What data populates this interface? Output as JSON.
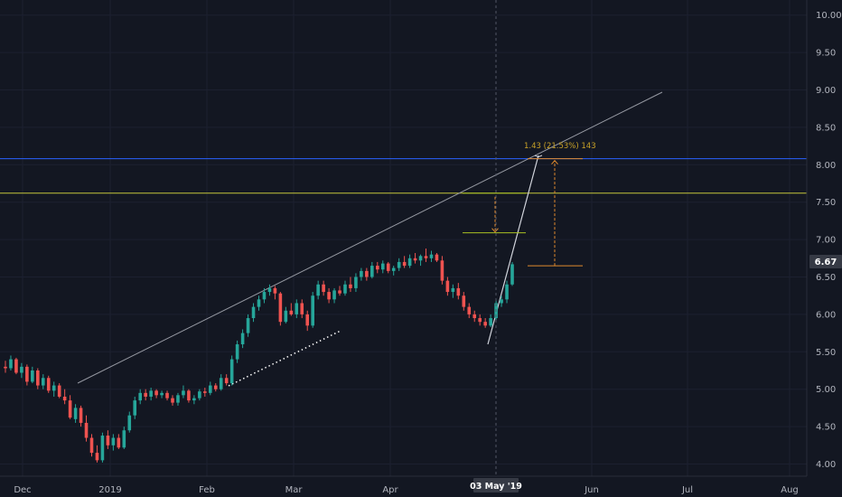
{
  "chart_data": {
    "type": "candlestick",
    "colors": {
      "background": "#131722",
      "up": "#26a69a",
      "down": "#ef5350",
      "axis_text": "#b2b5be",
      "tag_bg": "#363a45",
      "hline_blue": "#2962ff",
      "hline_yellow": "#c5c53a",
      "trendline": "#9598a1",
      "measure_green": "#a8c023",
      "measure_orange": "#e08a2d",
      "ray_white": "#d1d4dc",
      "dotted_white": "#ffffff"
    },
    "price_axis": {
      "min": 3.9,
      "max": 10.0,
      "ticks": [
        "4.00",
        "4.50",
        "5.00",
        "5.50",
        "6.00",
        "6.50",
        "7.00",
        "7.50",
        "8.00",
        "8.50",
        "9.00",
        "9.50",
        "10.00"
      ]
    },
    "time_axis": {
      "labels": [
        "Dec",
        "2019",
        "Feb",
        "Mar",
        "Apr",
        "03 May '19",
        "Jun",
        "Jul",
        "Aug"
      ]
    },
    "last_price": "6.67",
    "crosshair_label": "03 May '19",
    "measurement_label": "1.43 (21.53%) 143",
    "horizontal_lines": [
      {
        "name": "resistance-blue",
        "price": 8.08
      },
      {
        "name": "resistance-yellow",
        "price": 7.62
      }
    ],
    "candles": [
      [
        5.3,
        5.38,
        5.22,
        5.28
      ],
      [
        5.28,
        5.45,
        5.25,
        5.4
      ],
      [
        5.4,
        5.42,
        5.2,
        5.22
      ],
      [
        5.22,
        5.35,
        5.15,
        5.3
      ],
      [
        5.3,
        5.33,
        5.05,
        5.1
      ],
      [
        5.1,
        5.3,
        5.08,
        5.25
      ],
      [
        5.25,
        5.28,
        5.0,
        5.05
      ],
      [
        5.05,
        5.2,
        5.0,
        5.15
      ],
      [
        5.15,
        5.18,
        4.95,
        4.98
      ],
      [
        4.98,
        5.1,
        4.9,
        5.05
      ],
      [
        5.05,
        5.08,
        4.88,
        4.9
      ],
      [
        4.9,
        5.0,
        4.8,
        4.85
      ],
      [
        4.85,
        4.92,
        4.6,
        4.62
      ],
      [
        4.6,
        4.8,
        4.55,
        4.75
      ],
      [
        4.75,
        4.78,
        4.5,
        4.55
      ],
      [
        4.55,
        4.65,
        4.3,
        4.35
      ],
      [
        4.35,
        4.4,
        4.1,
        4.15
      ],
      [
        4.15,
        4.25,
        4.02,
        4.05
      ],
      [
        4.05,
        4.42,
        4.02,
        4.38
      ],
      [
        4.38,
        4.45,
        4.2,
        4.25
      ],
      [
        4.25,
        4.4,
        4.18,
        4.35
      ],
      [
        4.35,
        4.4,
        4.2,
        4.22
      ],
      [
        4.22,
        4.5,
        4.2,
        4.45
      ],
      [
        4.45,
        4.7,
        4.42,
        4.65
      ],
      [
        4.65,
        4.9,
        4.6,
        4.85
      ],
      [
        4.85,
        5.0,
        4.8,
        4.95
      ],
      [
        4.95,
        5.0,
        4.85,
        4.9
      ],
      [
        4.9,
        5.02,
        4.85,
        4.98
      ],
      [
        4.98,
        5.0,
        4.88,
        4.92
      ],
      [
        4.92,
        4.98,
        4.88,
        4.95
      ],
      [
        4.95,
        4.98,
        4.85,
        4.88
      ],
      [
        4.88,
        4.92,
        4.78,
        4.82
      ],
      [
        4.82,
        4.95,
        4.78,
        4.92
      ],
      [
        4.92,
        5.05,
        4.88,
        4.98
      ],
      [
        4.98,
        5.0,
        4.82,
        4.85
      ],
      [
        4.85,
        4.92,
        4.8,
        4.88
      ],
      [
        4.88,
        5.0,
        4.85,
        4.97
      ],
      [
        4.97,
        5.02,
        4.9,
        4.95
      ],
      [
        4.95,
        5.1,
        4.92,
        5.05
      ],
      [
        5.05,
        5.08,
        4.97,
        5.0
      ],
      [
        5.0,
        5.2,
        4.98,
        5.15
      ],
      [
        5.15,
        5.2,
        5.05,
        5.08
      ],
      [
        5.08,
        5.45,
        5.05,
        5.4
      ],
      [
        5.4,
        5.65,
        5.35,
        5.6
      ],
      [
        5.6,
        5.8,
        5.55,
        5.75
      ],
      [
        5.75,
        6.0,
        5.7,
        5.95
      ],
      [
        5.95,
        6.15,
        5.9,
        6.1
      ],
      [
        6.1,
        6.25,
        6.05,
        6.2
      ],
      [
        6.2,
        6.35,
        6.15,
        6.3
      ],
      [
        6.3,
        6.4,
        6.25,
        6.35
      ],
      [
        6.35,
        6.38,
        6.2,
        6.28
      ],
      [
        6.28,
        6.3,
        5.85,
        5.9
      ],
      [
        5.9,
        6.1,
        5.88,
        6.05
      ],
      [
        6.05,
        6.15,
        5.98,
        6.0
      ],
      [
        6.0,
        6.2,
        5.95,
        6.15
      ],
      [
        6.15,
        6.2,
        5.95,
        6.0
      ],
      [
        6.0,
        6.05,
        5.78,
        5.85
      ],
      [
        5.85,
        6.3,
        5.82,
        6.25
      ],
      [
        6.25,
        6.45,
        6.2,
        6.4
      ],
      [
        6.4,
        6.45,
        6.25,
        6.3
      ],
      [
        6.3,
        6.35,
        6.15,
        6.2
      ],
      [
        6.2,
        6.35,
        6.15,
        6.32
      ],
      [
        6.32,
        6.38,
        6.25,
        6.28
      ],
      [
        6.28,
        6.45,
        6.25,
        6.4
      ],
      [
        6.4,
        6.5,
        6.3,
        6.35
      ],
      [
        6.35,
        6.55,
        6.3,
        6.5
      ],
      [
        6.5,
        6.62,
        6.45,
        6.58
      ],
      [
        6.58,
        6.62,
        6.45,
        6.5
      ],
      [
        6.5,
        6.7,
        6.48,
        6.65
      ],
      [
        6.65,
        6.7,
        6.55,
        6.6
      ],
      [
        6.6,
        6.72,
        6.55,
        6.68
      ],
      [
        6.68,
        6.7,
        6.55,
        6.58
      ],
      [
        6.58,
        6.65,
        6.52,
        6.62
      ],
      [
        6.62,
        6.75,
        6.58,
        6.7
      ],
      [
        6.7,
        6.78,
        6.62,
        6.65
      ],
      [
        6.65,
        6.8,
        6.62,
        6.75
      ],
      [
        6.75,
        6.82,
        6.68,
        6.72
      ],
      [
        6.72,
        6.8,
        6.65,
        6.78
      ],
      [
        6.78,
        6.88,
        6.7,
        6.75
      ],
      [
        6.75,
        6.85,
        6.7,
        6.8
      ],
      [
        6.8,
        6.82,
        6.7,
        6.72
      ],
      [
        6.72,
        6.78,
        6.4,
        6.45
      ],
      [
        6.45,
        6.5,
        6.25,
        6.3
      ],
      [
        6.3,
        6.4,
        6.22,
        6.35
      ],
      [
        6.35,
        6.42,
        6.2,
        6.25
      ],
      [
        6.25,
        6.3,
        6.05,
        6.1
      ],
      [
        6.1,
        6.15,
        5.95,
        6.0
      ],
      [
        6.0,
        6.05,
        5.9,
        5.95
      ],
      [
        5.95,
        6.0,
        5.85,
        5.9
      ],
      [
        5.9,
        5.95,
        5.82,
        5.85
      ],
      [
        5.85,
        6.0,
        5.83,
        5.95
      ],
      [
        5.95,
        6.2,
        5.92,
        6.15
      ],
      [
        6.15,
        6.25,
        6.1,
        6.2
      ],
      [
        6.2,
        6.45,
        6.15,
        6.4
      ],
      [
        6.4,
        6.7,
        6.38,
        6.67
      ]
    ]
  }
}
